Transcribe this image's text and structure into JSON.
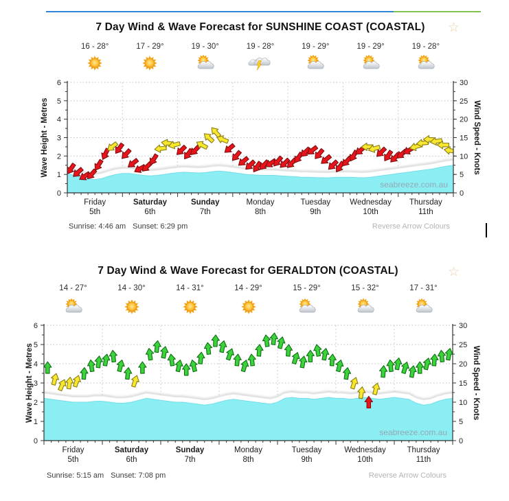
{
  "page": {
    "top_bar": {
      "blue_color": "#2f86d7",
      "green_color": "#84c24f"
    },
    "text_cursor_artifact": true
  },
  "chart_data": [
    {
      "type": "area",
      "title": "7 Day Wind & Wave Forecast for SUNSHINE COAST (COASTAL)",
      "star_icon": "favourite-star-icon",
      "x_days": [
        {
          "name": "Friday",
          "date": "5th",
          "bold": false,
          "temp": "16 - 28°",
          "weather_icon": "sunny"
        },
        {
          "name": "Saturday",
          "date": "6th",
          "bold": true,
          "temp": "17 - 29°",
          "weather_icon": "sunny"
        },
        {
          "name": "Sunday",
          "date": "7th",
          "bold": true,
          "temp": "19 - 30°",
          "weather_icon": "partly-cloudy"
        },
        {
          "name": "Monday",
          "date": "8th",
          "bold": false,
          "temp": "19 - 28°",
          "weather_icon": "thunderstorm"
        },
        {
          "name": "Tuesday",
          "date": "9th",
          "bold": false,
          "temp": "19 - 29°",
          "weather_icon": "partly-cloudy"
        },
        {
          "name": "Wednesday",
          "date": "10th",
          "bold": false,
          "temp": "19 - 29°",
          "weather_icon": "partly-cloudy"
        },
        {
          "name": "Thursday",
          "date": "11th",
          "bold": false,
          "temp": "19 - 28°",
          "weather_icon": "partly-cloudy"
        }
      ],
      "axes": {
        "left": {
          "label": "Wave Height - Metres",
          "ticks": [
            0,
            1,
            2,
            3,
            4,
            5,
            6
          ],
          "range": [
            0,
            6
          ]
        },
        "right": {
          "label": "Wind Speed - Knots",
          "ticks": [
            0,
            5,
            10,
            15,
            20,
            25,
            30
          ],
          "range": [
            0,
            30
          ]
        }
      },
      "wave_height_m": [
        1.05,
        0.95,
        0.85,
        0.75,
        0.72,
        0.78,
        0.9,
        1.0,
        1.05,
        1.05,
        1.0,
        0.95,
        0.92,
        0.95,
        1.0,
        1.05,
        1.1,
        1.12,
        1.1,
        1.08,
        1.1,
        1.15,
        1.18,
        1.15,
        1.1,
        1.05,
        1.0,
        0.98,
        0.95,
        0.95,
        0.95,
        0.92,
        0.9,
        0.88,
        0.85,
        0.85,
        0.83,
        0.82,
        0.82,
        0.85,
        0.85,
        0.85,
        0.83,
        0.82,
        0.85,
        0.9,
        0.95,
        1.0,
        1.05,
        1.1,
        1.15,
        1.2,
        1.25,
        1.3,
        1.38,
        1.45,
        1.5
      ],
      "wind_arrows_3h": [
        [
          6.5,
          215,
          "r"
        ],
        [
          5.5,
          228,
          "r"
        ],
        [
          4.5,
          238,
          "r"
        ],
        [
          5,
          222,
          "r"
        ],
        [
          7.5,
          212,
          "r"
        ],
        [
          10.5,
          206,
          "r"
        ],
        [
          12.5,
          232,
          "y"
        ],
        [
          12,
          216,
          "r"
        ],
        [
          10.5,
          222,
          "r"
        ],
        [
          8,
          232,
          "r"
        ],
        [
          6.5,
          242,
          "r"
        ],
        [
          7,
          226,
          "r"
        ],
        [
          9,
          212,
          "r"
        ],
        [
          12,
          262,
          "y"
        ],
        [
          13.5,
          278,
          "y"
        ],
        [
          13,
          256,
          "y"
        ],
        [
          11.5,
          226,
          "r"
        ],
        [
          10.5,
          216,
          "r"
        ],
        [
          11.5,
          224,
          "r"
        ],
        [
          13,
          298,
          "y"
        ],
        [
          15,
          312,
          "y"
        ],
        [
          16.5,
          318,
          "y"
        ],
        [
          14.5,
          292,
          "y"
        ],
        [
          12,
          230,
          "r"
        ],
        [
          10,
          220,
          "r"
        ],
        [
          8.5,
          230,
          "r"
        ],
        [
          7.5,
          226,
          "r"
        ],
        [
          7,
          214,
          "r"
        ],
        [
          7.5,
          224,
          "r"
        ],
        [
          8,
          236,
          "r"
        ],
        [
          8.5,
          220,
          "r"
        ],
        [
          8,
          226,
          "r"
        ],
        [
          8,
          224,
          "r"
        ],
        [
          9.5,
          214,
          "r"
        ],
        [
          11,
          226,
          "r"
        ],
        [
          11.5,
          232,
          "r"
        ],
        [
          10.5,
          220,
          "r"
        ],
        [
          9,
          230,
          "r"
        ],
        [
          7.5,
          226,
          "r"
        ],
        [
          7,
          214,
          "r"
        ],
        [
          8.5,
          222,
          "r"
        ],
        [
          10,
          210,
          "r"
        ],
        [
          11.5,
          230,
          "r"
        ],
        [
          12.5,
          268,
          "y"
        ],
        [
          12,
          254,
          "y"
        ],
        [
          11,
          226,
          "r"
        ],
        [
          10,
          214,
          "r"
        ],
        [
          9.5,
          224,
          "r"
        ],
        [
          10.5,
          230,
          "r"
        ],
        [
          11.5,
          240,
          "r"
        ],
        [
          12.5,
          254,
          "y"
        ],
        [
          13.5,
          264,
          "y"
        ],
        [
          14.5,
          272,
          "y"
        ],
        [
          14,
          260,
          "y"
        ],
        [
          13,
          270,
          "y"
        ],
        [
          11.5,
          280,
          "y"
        ]
      ],
      "footer": {
        "sunrise": "Sunrise: 4:46 am",
        "sunset": "Sunset: 6:29 pm",
        "reverse_link": "Reverse Arrow Colours"
      },
      "watermark": "seabreeze.com.au",
      "arrow_colors": {
        "red": "#e8141c",
        "yellow": "#f8e72f",
        "green": "#3bd23b"
      },
      "wave_color": "#8aeef3"
    },
    {
      "type": "area",
      "title": "7 Day Wind & Wave Forecast for GERALDTON (COASTAL)",
      "star_icon": "favourite-star-icon",
      "x_days": [
        {
          "name": "Friday",
          "date": "5th",
          "bold": false,
          "temp": "14 - 27°",
          "weather_icon": "partly-cloudy"
        },
        {
          "name": "Saturday",
          "date": "6th",
          "bold": true,
          "temp": "14 - 30°",
          "weather_icon": "sunny"
        },
        {
          "name": "Sunday",
          "date": "7th",
          "bold": true,
          "temp": "14 - 31°",
          "weather_icon": "sunny"
        },
        {
          "name": "Monday",
          "date": "8th",
          "bold": false,
          "temp": "14 - 29°",
          "weather_icon": "sunny"
        },
        {
          "name": "Tuesday",
          "date": "9th",
          "bold": false,
          "temp": "15 - 29°",
          "weather_icon": "partly-cloudy"
        },
        {
          "name": "Wednesday",
          "date": "10th",
          "bold": false,
          "temp": "15 - 32°",
          "weather_icon": "partly-cloudy"
        },
        {
          "name": "Thursday",
          "date": "11th",
          "bold": false,
          "temp": "17 - 31°",
          "weather_icon": "partly-cloudy"
        }
      ],
      "axes": {
        "left": {
          "label": "Wave Height - Metres",
          "ticks": [
            0,
            1,
            2,
            3,
            4,
            5,
            6
          ],
          "range": [
            0,
            6
          ]
        },
        "right": {
          "label": "Wind Speed - Knots",
          "ticks": [
            0,
            5,
            10,
            15,
            20,
            25,
            30
          ],
          "range": [
            0,
            30
          ]
        }
      },
      "wave_height_m": [
        2.2,
        2.15,
        2.1,
        2.05,
        2.0,
        2.0,
        2.0,
        2.05,
        2.05,
        2.0,
        1.95,
        1.95,
        2.0,
        2.1,
        2.2,
        2.15,
        2.1,
        2.05,
        2.0,
        2.0,
        1.95,
        1.9,
        1.85,
        1.9,
        2.0,
        2.1,
        2.15,
        2.1,
        2.05,
        2.0,
        1.95,
        1.9,
        2.0,
        2.2,
        2.25,
        2.2,
        2.2,
        2.15,
        2.2,
        2.25,
        2.2,
        2.2,
        2.15,
        2.2,
        2.25,
        2.2,
        2.15,
        2.2,
        2.25,
        2.2,
        2.15,
        1.95,
        1.85,
        1.9,
        2.05,
        2.15,
        2.2
      ],
      "wind_arrows_3h": [
        [
          19,
          0,
          "g"
        ],
        [
          16,
          14,
          "y"
        ],
        [
          14.5,
          24,
          "y"
        ],
        [
          15,
          8,
          "y"
        ],
        [
          15.5,
          18,
          "y"
        ],
        [
          17.5,
          4,
          "g"
        ],
        [
          19.5,
          -8,
          "g"
        ],
        [
          20.5,
          6,
          "g"
        ],
        [
          21,
          10,
          "g"
        ],
        [
          22,
          -6,
          "g"
        ],
        [
          19.5,
          14,
          "g"
        ],
        [
          17.5,
          6,
          "g"
        ],
        [
          15.5,
          18,
          "y"
        ],
        [
          19,
          0,
          "g"
        ],
        [
          22.5,
          -8,
          "g"
        ],
        [
          24.5,
          6,
          "g"
        ],
        [
          23,
          10,
          "g"
        ],
        [
          21,
          -8,
          "g"
        ],
        [
          19.5,
          12,
          "g"
        ],
        [
          18.5,
          0,
          "g"
        ],
        [
          19.5,
          -14,
          "g"
        ],
        [
          21.5,
          6,
          "g"
        ],
        [
          24,
          -6,
          "g"
        ],
        [
          26,
          2,
          "g"
        ],
        [
          24.5,
          12,
          "g"
        ],
        [
          22.5,
          20,
          "g"
        ],
        [
          21,
          6,
          "g"
        ],
        [
          19.5,
          16,
          "g"
        ],
        [
          21,
          -6,
          "g"
        ],
        [
          23.5,
          4,
          "g"
        ],
        [
          26,
          -8,
          "g"
        ],
        [
          26.5,
          6,
          "g"
        ],
        [
          25.5,
          14,
          "g"
        ],
        [
          23.5,
          4,
          "g"
        ],
        [
          21.5,
          18,
          "g"
        ],
        [
          20.5,
          10,
          "g"
        ],
        [
          22,
          0,
          "g"
        ],
        [
          23.5,
          -10,
          "g"
        ],
        [
          22.5,
          10,
          "g"
        ],
        [
          21,
          4,
          "g"
        ],
        [
          19.5,
          14,
          "g"
        ],
        [
          17.5,
          8,
          "g"
        ],
        [
          15,
          18,
          "y"
        ],
        [
          12.5,
          8,
          "y"
        ],
        [
          10,
          0,
          "r"
        ],
        [
          13.5,
          14,
          "y"
        ],
        [
          18,
          4,
          "g"
        ],
        [
          19.5,
          -6,
          "g"
        ],
        [
          20,
          10,
          "g"
        ],
        [
          19,
          18,
          "g"
        ],
        [
          18,
          10,
          "g"
        ],
        [
          19,
          0,
          "g"
        ],
        [
          20,
          14,
          "g"
        ],
        [
          21,
          4,
          "g"
        ],
        [
          22,
          -6,
          "g"
        ],
        [
          22.5,
          10,
          "g"
        ]
      ],
      "footer": {
        "sunrise": "Sunrise: 5:15 am",
        "sunset": "Sunset: 7:08 pm",
        "reverse_link": "Reverse Arrow Colours"
      },
      "watermark": "seabreeze.com.au",
      "arrow_colors": {
        "red": "#e8141c",
        "yellow": "#f8e72f",
        "green": "#3bd23b"
      },
      "wave_color": "#8aeef3"
    }
  ]
}
